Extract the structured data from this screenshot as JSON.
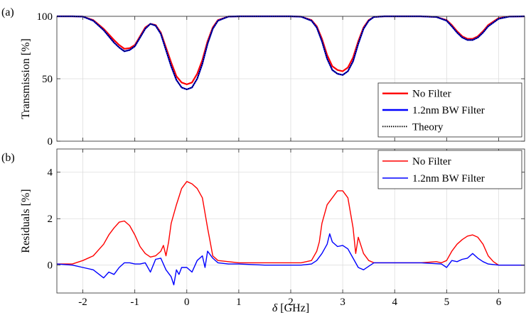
{
  "chart_data": [
    {
      "panel_label": "(a)",
      "type": "line",
      "ylabel": "Transmission [%]",
      "xlim": [
        -2.5,
        6.5
      ],
      "ylim": [
        0,
        100
      ],
      "yticks": [
        0,
        50,
        100
      ],
      "grid": true,
      "legend": "bottom-right",
      "series": [
        {
          "name": "No Filter",
          "color": "#ff0000",
          "style": "solid",
          "x": [
            -2.5,
            -2.2,
            -2.0,
            -1.8,
            -1.6,
            -1.4,
            -1.3,
            -1.2,
            -1.1,
            -1.0,
            -0.9,
            -0.8,
            -0.7,
            -0.6,
            -0.5,
            -0.4,
            -0.3,
            -0.2,
            -0.1,
            0.0,
            0.1,
            0.2,
            0.3,
            0.4,
            0.5,
            0.6,
            0.8,
            1.0,
            1.5,
            2.0,
            2.2,
            2.4,
            2.5,
            2.6,
            2.7,
            2.8,
            2.9,
            3.0,
            3.1,
            3.2,
            3.3,
            3.4,
            3.5,
            3.6,
            3.8,
            4.0,
            4.5,
            4.8,
            5.0,
            5.1,
            5.2,
            5.3,
            5.4,
            5.5,
            5.6,
            5.7,
            5.8,
            6.0,
            6.2,
            6.5
          ],
          "y": [
            100,
            100,
            99.8,
            97,
            90,
            81,
            77,
            74,
            74.5,
            77,
            84,
            91,
            94,
            93,
            87,
            75,
            63,
            52,
            47,
            45.5,
            47,
            54,
            65,
            80,
            91,
            97,
            99.8,
            100,
            100,
            100,
            99.7,
            97,
            92,
            82,
            69,
            60,
            57,
            56,
            59,
            67,
            80,
            91,
            97,
            99.5,
            100,
            100,
            100,
            99.5,
            97,
            93,
            88,
            84,
            82,
            82,
            84,
            88,
            93,
            98.5,
            99.8,
            100
          ]
        },
        {
          "name": "1.2nm BW Filter",
          "color": "#0000ff",
          "style": "solid",
          "x": [
            -2.5,
            -2.2,
            -2.0,
            -1.8,
            -1.6,
            -1.4,
            -1.3,
            -1.2,
            -1.1,
            -1.0,
            -0.9,
            -0.8,
            -0.7,
            -0.6,
            -0.5,
            -0.4,
            -0.3,
            -0.2,
            -0.1,
            0.0,
            0.1,
            0.2,
            0.3,
            0.4,
            0.5,
            0.6,
            0.8,
            1.0,
            1.5,
            2.0,
            2.2,
            2.4,
            2.5,
            2.6,
            2.7,
            2.8,
            2.9,
            3.0,
            3.1,
            3.2,
            3.3,
            3.4,
            3.5,
            3.6,
            3.8,
            4.0,
            4.5,
            4.8,
            5.0,
            5.1,
            5.2,
            5.3,
            5.4,
            5.5,
            5.6,
            5.7,
            5.8,
            6.0,
            6.2,
            6.5
          ],
          "y": [
            100,
            100,
            99.8,
            96.5,
            89,
            79,
            75,
            72,
            73,
            76,
            83,
            90,
            94,
            92.5,
            86,
            73,
            60,
            49,
            43,
            41.5,
            43,
            50,
            62,
            78,
            90,
            96.5,
            99.8,
            100,
            100,
            100,
            99.7,
            96.5,
            91,
            80,
            66,
            57,
            54,
            53,
            56,
            64,
            78,
            90,
            96.5,
            99.5,
            100,
            100,
            100,
            99.5,
            96.5,
            92,
            87,
            83,
            81,
            81,
            83,
            87,
            92,
            98,
            99.8,
            100
          ]
        },
        {
          "name": "Theory",
          "color": "#000000",
          "style": "dotted",
          "x": [
            -2.5,
            -2.2,
            -2.0,
            -1.8,
            -1.6,
            -1.4,
            -1.3,
            -1.2,
            -1.1,
            -1.0,
            -0.9,
            -0.8,
            -0.7,
            -0.6,
            -0.5,
            -0.4,
            -0.3,
            -0.2,
            -0.1,
            0.0,
            0.1,
            0.2,
            0.3,
            0.4,
            0.5,
            0.6,
            0.8,
            1.0,
            1.5,
            2.0,
            2.2,
            2.4,
            2.5,
            2.6,
            2.7,
            2.8,
            2.9,
            3.0,
            3.1,
            3.2,
            3.3,
            3.4,
            3.5,
            3.6,
            3.8,
            4.0,
            4.5,
            4.8,
            5.0,
            5.1,
            5.2,
            5.3,
            5.4,
            5.5,
            5.6,
            5.7,
            5.8,
            6.0,
            6.2,
            6.5
          ],
          "y": [
            100,
            100,
            99.8,
            96.5,
            89,
            79,
            75,
            72,
            73,
            76,
            83,
            90,
            94,
            92.5,
            86,
            73,
            60,
            49,
            43,
            41.5,
            43,
            50,
            62,
            78,
            90,
            96.5,
            99.8,
            100,
            100,
            100,
            99.7,
            96.5,
            91,
            80,
            66,
            57,
            54,
            53,
            56,
            64,
            78,
            90,
            96.5,
            99.5,
            100,
            100,
            100,
            99.5,
            96.5,
            92,
            87,
            83,
            81,
            81,
            83,
            87,
            92,
            98,
            99.8,
            100
          ]
        }
      ]
    },
    {
      "panel_label": "(b)",
      "type": "line",
      "ylabel": "Residuals [%]",
      "xlabel_symbol": "δ",
      "xlabel_unit": " [GHz]",
      "xlim": [
        -2.5,
        6.5
      ],
      "ylim": [
        -1.2,
        5
      ],
      "yticks": [
        0,
        2,
        4
      ],
      "xticks": [
        -2,
        -1,
        0,
        1,
        2,
        3,
        4,
        5,
        6
      ],
      "grid": true,
      "legend": "top-right",
      "series": [
        {
          "name": "No Filter",
          "color": "#ff0000",
          "x": [
            -2.5,
            -2.2,
            -2.0,
            -1.8,
            -1.6,
            -1.5,
            -1.4,
            -1.3,
            -1.2,
            -1.1,
            -1.0,
            -0.9,
            -0.8,
            -0.7,
            -0.6,
            -0.5,
            -0.45,
            -0.4,
            -0.35,
            -0.3,
            -0.2,
            -0.1,
            0.0,
            0.1,
            0.2,
            0.3,
            0.4,
            0.45,
            0.5,
            0.6,
            0.8,
            1.0,
            1.5,
            2.0,
            2.2,
            2.4,
            2.5,
            2.55,
            2.6,
            2.7,
            2.8,
            2.9,
            3.0,
            3.1,
            3.2,
            3.25,
            3.3,
            3.4,
            3.5,
            3.6,
            4.0,
            4.5,
            4.8,
            4.9,
            5.0,
            5.1,
            5.2,
            5.3,
            5.4,
            5.5,
            5.6,
            5.7,
            5.8,
            5.9,
            6.0,
            6.5
          ],
          "y": [
            0.05,
            0.05,
            0.2,
            0.4,
            0.9,
            1.3,
            1.6,
            1.85,
            1.9,
            1.7,
            1.3,
            0.8,
            0.5,
            0.35,
            0.4,
            0.6,
            0.85,
            0.4,
            1.0,
            1.8,
            2.6,
            3.3,
            3.6,
            3.5,
            3.3,
            2.9,
            1.6,
            1.0,
            0.4,
            0.2,
            0.15,
            0.1,
            0.1,
            0.1,
            0.1,
            0.2,
            0.6,
            1.0,
            1.8,
            2.6,
            2.9,
            3.2,
            3.2,
            2.9,
            1.6,
            0.5,
            1.2,
            0.5,
            0.2,
            0.1,
            0.1,
            0.1,
            0.15,
            0.1,
            0.2,
            0.6,
            0.9,
            1.1,
            1.25,
            1.3,
            1.2,
            0.9,
            0.4,
            0.15,
            0.0,
            0.0
          ]
        },
        {
          "name": "1.2nm BW Filter",
          "color": "#0000ff",
          "x": [
            -2.5,
            -2.2,
            -2.0,
            -1.8,
            -1.6,
            -1.5,
            -1.4,
            -1.3,
            -1.2,
            -1.1,
            -1.0,
            -0.9,
            -0.8,
            -0.7,
            -0.6,
            -0.5,
            -0.4,
            -0.3,
            -0.25,
            -0.2,
            -0.15,
            -0.1,
            0.0,
            0.1,
            0.2,
            0.3,
            0.35,
            0.4,
            0.5,
            0.6,
            0.8,
            1.0,
            1.5,
            2.0,
            2.2,
            2.4,
            2.5,
            2.6,
            2.7,
            2.75,
            2.8,
            2.9,
            3.0,
            3.1,
            3.2,
            3.3,
            3.4,
            3.5,
            3.6,
            4.0,
            4.5,
            4.9,
            5.0,
            5.1,
            5.2,
            5.3,
            5.4,
            5.5,
            5.6,
            5.7,
            5.8,
            6.0,
            6.5
          ],
          "y": [
            0.05,
            0.0,
            -0.1,
            -0.2,
            -0.55,
            -0.3,
            -0.4,
            -0.1,
            0.1,
            0.1,
            0.05,
            0.05,
            0.1,
            -0.3,
            0.25,
            0.3,
            -0.2,
            -0.5,
            -0.85,
            -0.2,
            -0.4,
            -0.1,
            -0.1,
            -0.3,
            0.2,
            0.4,
            -0.1,
            0.6,
            0.3,
            0.1,
            0.05,
            0.05,
            0.0,
            0.0,
            0.0,
            0.05,
            0.2,
            0.5,
            0.9,
            1.35,
            1.0,
            0.8,
            0.85,
            0.7,
            0.3,
            -0.1,
            -0.2,
            -0.05,
            0.1,
            0.1,
            0.1,
            0.05,
            -0.1,
            0.2,
            0.15,
            0.25,
            0.3,
            0.5,
            0.3,
            0.15,
            0.05,
            0.0,
            0.0
          ]
        }
      ]
    }
  ]
}
